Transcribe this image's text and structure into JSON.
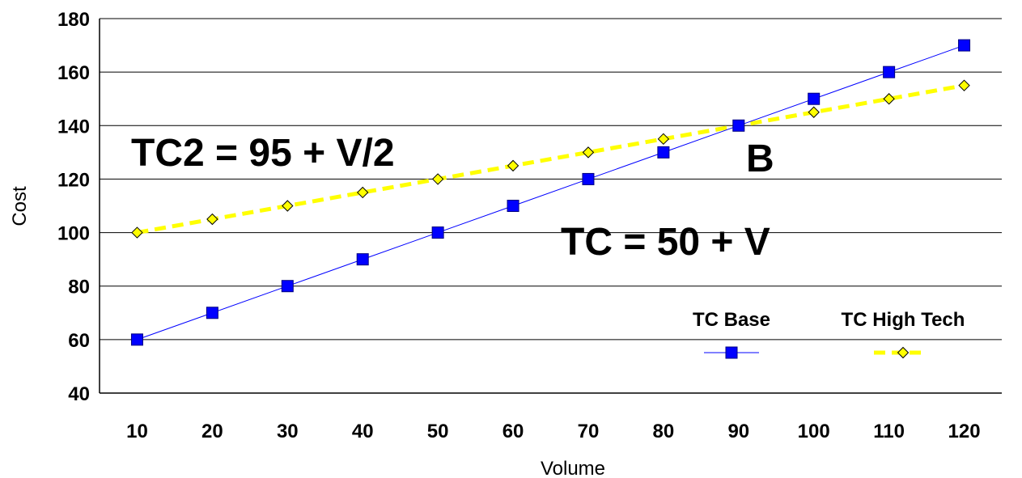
{
  "chart_data": {
    "type": "line",
    "xlabel": "Volume",
    "ylabel": "Cost",
    "ylim": [
      40,
      180
    ],
    "yticks": [
      40,
      60,
      80,
      100,
      120,
      140,
      160,
      180
    ],
    "x": [
      10,
      20,
      30,
      40,
      50,
      60,
      70,
      80,
      90,
      100,
      110,
      120
    ],
    "grid": "horizontal",
    "legend_position": "bottom-right",
    "series": [
      {
        "name": "TC Base",
        "values": [
          60,
          70,
          80,
          90,
          100,
          110,
          120,
          130,
          140,
          150,
          160,
          170
        ],
        "color": "#0000ff",
        "marker": "square",
        "line_style": "solid"
      },
      {
        "name": "TC High Tech",
        "values": [
          100,
          105,
          110,
          115,
          120,
          125,
          130,
          135,
          140,
          145,
          150,
          155
        ],
        "color": "#ffff00",
        "marker": "diamond",
        "line_style": "dashed"
      }
    ],
    "annotations": [
      {
        "text": "TC2 = 95 + V/2"
      },
      {
        "text": "TC = 50 + V"
      },
      {
        "text": "B"
      }
    ]
  }
}
